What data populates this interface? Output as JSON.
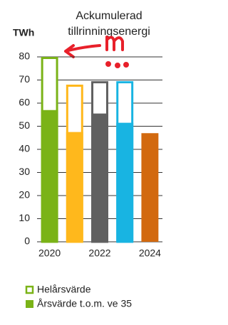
{
  "chart_data": {
    "type": "bar",
    "title": "Ackumulerad tillrinningsenergi",
    "y_label": "TWh",
    "categories": [
      "2020",
      null,
      "2022",
      null,
      "2024"
    ],
    "colors": [
      "#7ab317",
      "#ffb81c",
      "#606060",
      "#18b4e2",
      "#d2690f"
    ],
    "series": [
      {
        "name": "Helårsvärde",
        "color": "#7ab317",
        "style": "outline",
        "values": [
          80,
          68,
          69.5,
          69.5,
          null
        ]
      },
      {
        "name": "Årsvärde t.o.m. ve 35",
        "color": "#7ab317",
        "style": "filled",
        "values": [
          57,
          47.5,
          55.5,
          51.5,
          47
        ]
      }
    ],
    "ylim": [
      0,
      80
    ],
    "yticks": [
      0,
      10,
      20,
      30,
      40,
      50,
      60,
      70,
      80
    ],
    "grid": true
  }
}
